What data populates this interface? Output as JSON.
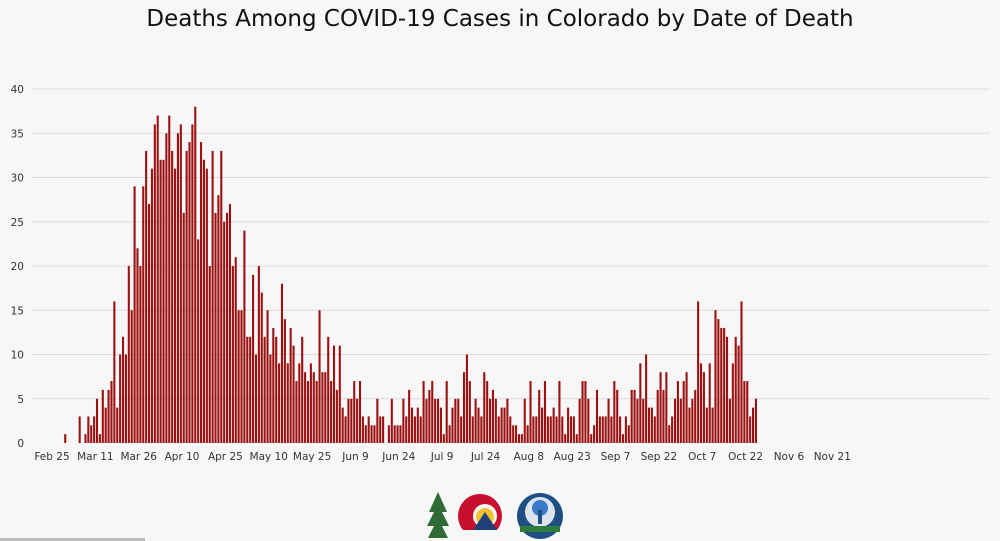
{
  "chart_data": {
    "type": "bar",
    "title": "Deaths Among COVID-19 Cases in Colorado by Date of Death",
    "xlabel": "",
    "ylabel": "",
    "ylim": [
      0,
      40
    ],
    "yticks": [
      0,
      5,
      10,
      15,
      20,
      25,
      30,
      35,
      40
    ],
    "xtick_labels": [
      "Feb 25",
      "Mar 11",
      "Mar 26",
      "Apr 10",
      "Apr 25",
      "May 10",
      "May 25",
      "Jun 9",
      "Jun 24",
      "Jul 9",
      "Jul 24",
      "Aug 8",
      "Aug 23",
      "Sep 7",
      "Sep 22",
      "Oct 7",
      "Oct 22",
      "Nov 6",
      "Nov 21"
    ],
    "x_start": "Feb 25",
    "bar_color": "#9b1010",
    "grid": true,
    "values": [
      0,
      0,
      0,
      0,
      0,
      0,
      0,
      0,
      0,
      0,
      0,
      1,
      0,
      0,
      0,
      0,
      3,
      0,
      1,
      3,
      2,
      3,
      5,
      1,
      6,
      4,
      6,
      7,
      16,
      4,
      10,
      12,
      10,
      20,
      15,
      29,
      22,
      20,
      29,
      33,
      27,
      31,
      36,
      37,
      32,
      32,
      35,
      37,
      33,
      31,
      35,
      36,
      26,
      33,
      34,
      36,
      38,
      23,
      34,
      32,
      31,
      20,
      33,
      26,
      28,
      33,
      25,
      26,
      27,
      20,
      21,
      15,
      15,
      24,
      12,
      12,
      19,
      10,
      20,
      17,
      12,
      15,
      10,
      13,
      12,
      9,
      18,
      14,
      9,
      13,
      11,
      7,
      9,
      12,
      8,
      7,
      9,
      8,
      7,
      15,
      8,
      8,
      12,
      7,
      11,
      6,
      11,
      4,
      3,
      5,
      5,
      7,
      5,
      7,
      3,
      2,
      3,
      2,
      2,
      5,
      3,
      3,
      0,
      2,
      5,
      2,
      2,
      2,
      5,
      3,
      6,
      4,
      3,
      4,
      3,
      7,
      5,
      6,
      7,
      5,
      5,
      4,
      1,
      7,
      2,
      4,
      5,
      5,
      3,
      8,
      10,
      7,
      3,
      5,
      4,
      3,
      8,
      7,
      5,
      6,
      5,
      3,
      4,
      4,
      5,
      3,
      2,
      2,
      1,
      1,
      5,
      2,
      7,
      3,
      3,
      6,
      4,
      7,
      3,
      3,
      4,
      3,
      7,
      3,
      1,
      4,
      3,
      3,
      1,
      5,
      7,
      7,
      5,
      1,
      2,
      6,
      3,
      3,
      3,
      5,
      3,
      7,
      6,
      3,
      1,
      3,
      2,
      6,
      6,
      5,
      9,
      5,
      10,
      4,
      4,
      3,
      6,
      8,
      6,
      8,
      2,
      3,
      5,
      7,
      5,
      7,
      8,
      4,
      5,
      6,
      16,
      9,
      8,
      4,
      9,
      4,
      15,
      14,
      13,
      13,
      12,
      5,
      9,
      12,
      11,
      16,
      7,
      7,
      3,
      4,
      5
    ]
  },
  "logos": {
    "state_logo": "colorado-state-logo",
    "cdphe_logo": "cdphe-logo"
  }
}
